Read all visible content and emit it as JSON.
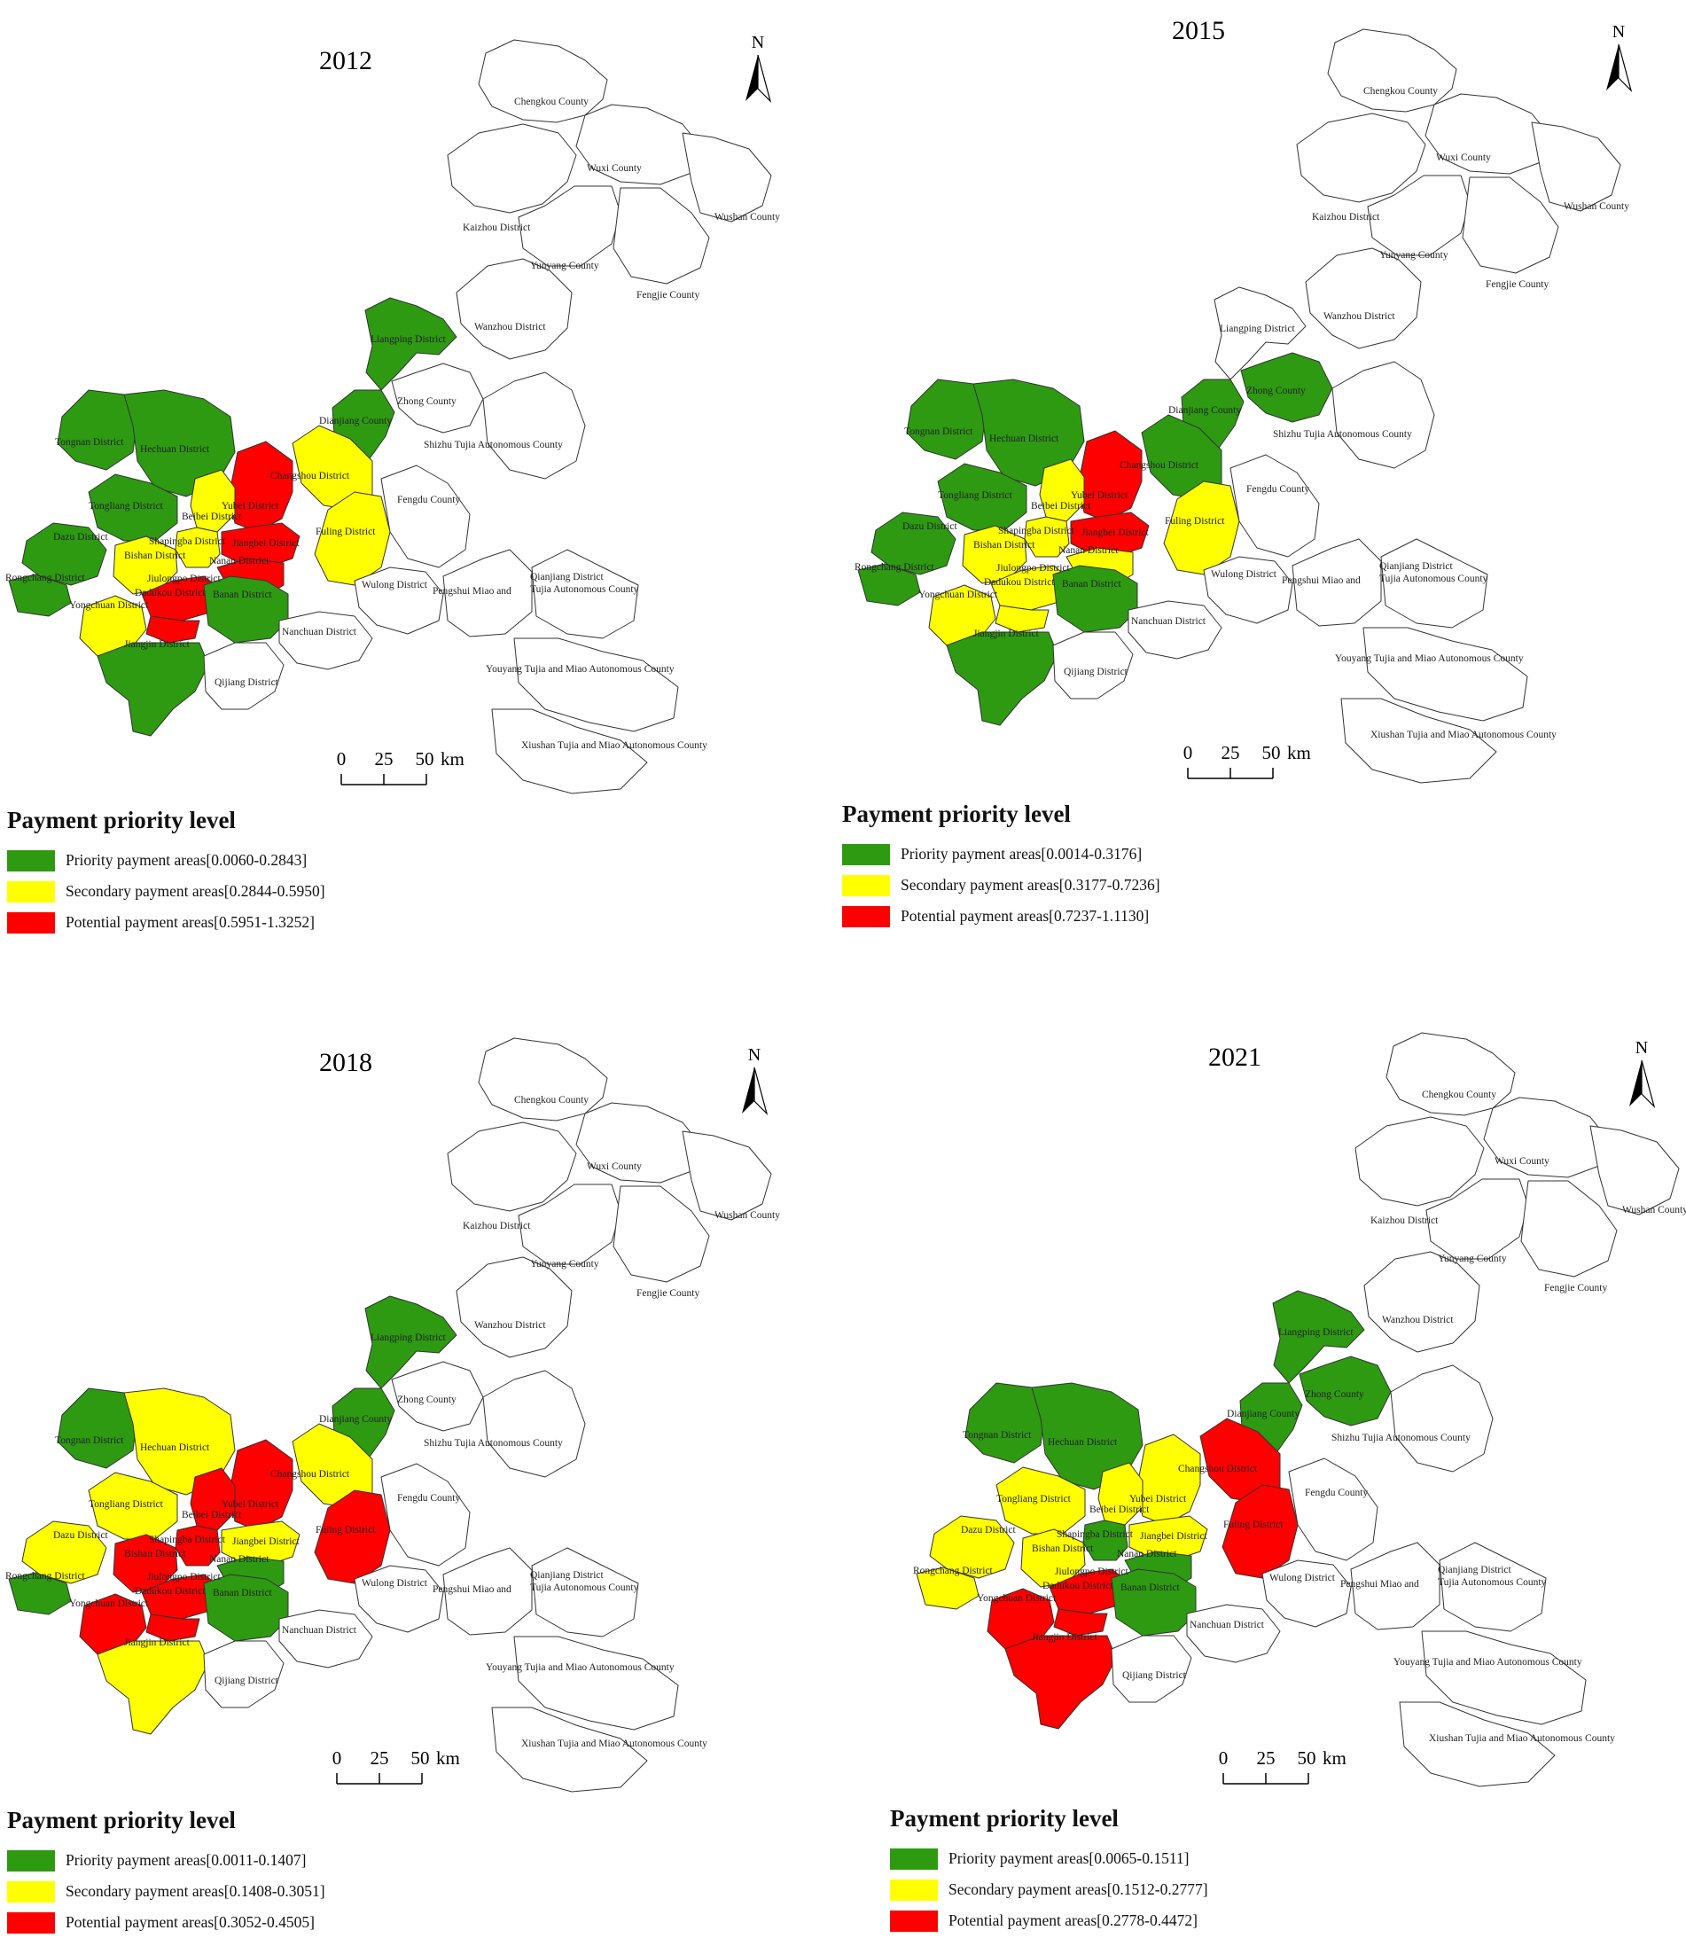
{
  "legend_title": "Payment priority level",
  "colors": {
    "priority": "#2e9a12",
    "secondary": "#ffff00",
    "potential": "#ff0000",
    "other": "#ffffff",
    "outline": "#333333"
  },
  "north_label": "N",
  "scale": {
    "ticks": [
      "0",
      "25",
      "50"
    ],
    "unit": "km"
  },
  "panels": [
    {
      "year": "2012",
      "legend": [
        {
          "level": "priority",
          "label": "Priority payment areas[0.0060-0.2843]"
        },
        {
          "level": "secondary",
          "label": "Secondary payment areas[0.2844-0.5950]"
        },
        {
          "level": "potential",
          "label": "Potential payment areas[0.5951-1.3252]"
        }
      ],
      "classes": {
        "Chengkou County": "other",
        "Wuxi County": "other",
        "Kaizhou District": "other",
        "Wushan County": "other",
        "Yunyang County": "other",
        "Fengjie County": "other",
        "Wanzhou District": "other",
        "Liangping District": "priority",
        "Zhong County": "other",
        "Dianjiang County": "priority",
        "Shizhu Tujia Autonomous County": "other",
        "Tongnan District": "priority",
        "Hechuan District": "priority",
        "Changshou District": "secondary",
        "Yubei District": "potential",
        "Tongliang District": "priority",
        "Fengdu County": "other",
        "Beibei District": "secondary",
        "Shapingba District": "secondary",
        "Jiangbei District": "potential",
        "Fuling District": "secondary",
        "Dazu District": "priority",
        "Bishan District": "secondary",
        "Yuzhong District": "potential",
        "Nanan District": "potential",
        "Rongchang District": "priority",
        "Jiulongpo District": "potential",
        "Dadukou District": "potential",
        "Wulong District": "other",
        "Pengshui Miao and Tujia Autonomous County": "other",
        "Qianjiang District": "other",
        "Yongchuan District": "secondary",
        "Banan District": "priority",
        "Nanchuan District": "other",
        "Jiangjin District": "priority",
        "Qijiang District": "other",
        "Youyang Tujia and Miao Autonomous County": "other",
        "Xiushan Tujia and Miao Autonomous County": "other"
      },
      "texts": {
        "Chengkou County": "Chengkou County",
        "Wuxi County": "Wuxi County",
        "Kaizhou District": "Kaizhou District",
        "Wushan County": "Wushan County",
        "Yunyang County": "Yunyang County",
        "Fengjie County": "Fengjie County",
        "Wanzhou District": "Wanzhou District",
        "Liangping District": "Liangping District",
        "Zhong County": "Zhong County",
        "Dianjiang County": "Dianjiang County",
        "Shizhu Tujia Autonomous County": "Shizhu Tujia Autonomous County",
        "Tongnan District": "Tongnan District",
        "Hechuan District": "Hechuan District",
        "Changshou District": "Changshou District",
        "Yubei District": "Yubei District",
        "Tongliang District": "Tongliang District",
        "Fengdu County": "Fengdu County",
        "Beibei District": "Beibei District",
        "Shapingba District": "Shapingba District",
        "Jiangbei District": "Jiangbei District",
        "Fuling District": "Fuling District",
        "Dazu District": "Dazu District",
        "Bishan District": "Bishan District",
        "Nanan District": "Nanan District",
        "Rongchang District": "Rongchang District",
        "Jiulongpo District": "Jiulongpo District",
        "Dadukou District": "Dadukou District",
        "Wulong District": "Wulong District",
        "Pengshui Miao and": "Pengshui Miao and",
        "Qianjiang District": "Qianjiang District",
        "Tujia Autonomous County": "Tujia Autonomous County",
        "Yongchuan District": "Yongchuan District",
        "Banan District": "Banan District",
        "Nanchuan District": "Nanchuan District",
        "Jiangjin District": "Jiangjin District",
        "Qijiang District": "Qijiang District",
        "Youyang Tujia and Miao Autonomous County": "Youyang Tujia and Miao Autonomous County",
        "Xiushan Tujia and Miao Autonomous County": "Xiushan Tujia and Miao Autonomous County"
      }
    },
    {
      "year": "2015",
      "legend": [
        {
          "level": "priority",
          "label": "Priority payment areas[0.0014-0.3176]"
        },
        {
          "level": "secondary",
          "label": "Secondary payment areas[0.3177-0.7236]"
        },
        {
          "level": "potential",
          "label": "Potential payment areas[0.7237-1.1130]"
        }
      ],
      "classes": {
        "Chengkou County": "other",
        "Wuxi County": "other",
        "Kaizhou District": "other",
        "Wushan County": "other",
        "Yunyang County": "other",
        "Fengjie County": "other",
        "Wanzhou District": "other",
        "Liangping District": "other",
        "Zhong County": "priority",
        "Dianjiang County": "priority",
        "Shizhu Tujia Autonomous County": "other",
        "Tongnan District": "priority",
        "Hechuan District": "priority",
        "Changshou District": "priority",
        "Yubei District": "potential",
        "Tongliang District": "priority",
        "Fengdu County": "other",
        "Beibei District": "secondary",
        "Shapingba District": "secondary",
        "Jiangbei District": "potential",
        "Fuling District": "secondary",
        "Dazu District": "priority",
        "Bishan District": "secondary",
        "Yuzhong District": "potential",
        "Nanan District": "secondary",
        "Rongchang District": "priority",
        "Jiulongpo District": "secondary",
        "Dadukou District": "secondary",
        "Wulong District": "other",
        "Pengshui Miao and Tujia Autonomous County": "other",
        "Qianjiang District": "other",
        "Yongchuan District": "secondary",
        "Banan District": "priority",
        "Nanchuan District": "other",
        "Jiangjin District": "priority",
        "Qijiang District": "other",
        "Youyang Tujia and Miao Autonomous County": "other",
        "Xiushan Tujia and Miao Autonomous County": "other"
      },
      "texts": {
        "Chengkou County": "Chengkou County",
        "Wuxi County": "Wuxi County",
        "Kaizhou District": "Kaizhou District",
        "Wushan County": "Wushan County",
        "Yunyang County": "Yunyang County",
        "Fengjie County": "Fengjie County",
        "Wanzhou District": "Wanzhou District",
        "Liangping District": "Liangping District",
        "Zhong County": "Zhong County",
        "Dianjiang County": "Dianjiang County",
        "Shizhu Tujia Autonomous County": "Shizhu Tujia Autonomous County",
        "Tongnan District": "Tongnan District",
        "Hechuan District": "Hechuan District",
        "Changshou District": "Changshou District",
        "Yubei District": "Yubei District",
        "Tongliang District": "Tongliang District",
        "Fengdu County": "Fengdu County",
        "Beibei District": "Beibei District",
        "Shapingba District": "Shapingba District",
        "Jiangbei District": "Jiangbei District",
        "Fuling District": "Fuling District",
        "Dazu District": "Dazu District",
        "Bishan District": "Bishan District",
        "Nanan District": "Nanan District",
        "Rongchang District": "Rongchang District",
        "Jiulongpo District": "Jiulongpo District",
        "Dadukou District": "Dadukou District",
        "Wulong District": "Wulong District",
        "Pengshui Miao and": "Pengshui Miao and",
        "Qianjiang District": "Qianjiang District",
        "Tujia Autonomous County": "Tujia Autonomous County",
        "Yongchuan District": "Yongchuan District",
        "Banan District": "Banan District",
        "Nanchuan District": "Nanchuan District",
        "Jiangjin District": "Jiangjin District",
        "Qijiang District": "Qijiang District",
        "Youyang Tujia and Miao Autonomous County": "Youyang Tujia and Miao Autonomous County",
        "Xiushan Tujia and Miao Autonomous County": "Xiushan Tujia and Miao Autonomous County"
      }
    },
    {
      "year": "2018",
      "legend": [
        {
          "level": "priority",
          "label": "Priority payment areas[0.0011-0.1407]"
        },
        {
          "level": "secondary",
          "label": "Secondary payment areas[0.1408-0.3051]"
        },
        {
          "level": "potential",
          "label": "Potential payment areas[0.3052-0.4505]"
        }
      ],
      "classes": {
        "Chengkou County": "other",
        "Wuxi County": "other",
        "Kaizhou District": "other",
        "Wushan County": "other",
        "Yunyang County": "other",
        "Fengjie County": "other",
        "Wanzhou District": "other",
        "Liangping District": "priority",
        "Zhong County": "other",
        "Dianjiang County": "priority",
        "Shizhu Tujia Autonomous County": "other",
        "Tongnan District": "priority",
        "Hechuan District": "secondary",
        "Changshou District": "secondary",
        "Yubei District": "potential",
        "Tongliang District": "secondary",
        "Fengdu County": "other",
        "Beibei District": "potential",
        "Shapingba District": "potential",
        "Jiangbei District": "secondary",
        "Fuling District": "potential",
        "Dazu District": "secondary",
        "Bishan District": "potential",
        "Yuzhong District": "secondary",
        "Nanan District": "priority",
        "Rongchang District": "priority",
        "Jiulongpo District": "potential",
        "Dadukou District": "potential",
        "Wulong District": "other",
        "Pengshui Miao and Tujia Autonomous County": "other",
        "Qianjiang District": "other",
        "Yongchuan District": "potential",
        "Banan District": "priority",
        "Nanchuan District": "other",
        "Jiangjin District": "secondary",
        "Qijiang District": "other",
        "Youyang Tujia and Miao Autonomous County": "other",
        "Xiushan Tujia and Miao Autonomous County": "other"
      },
      "texts": {
        "Chengkou County": "Chengkou County",
        "Wuxi County": "Wuxi County",
        "Kaizhou District": "Kaizhou District",
        "Wushan County": "Wushan County",
        "Yunyang County": "Yunyang County",
        "Fengjie County": "Fengjie County",
        "Wanzhou District": "Wanzhou District",
        "Liangping District": "Liangping District",
        "Zhong County": "Zhong County",
        "Dianjiang County": "Dianjiang County",
        "Shizhu Tujia Autonomous County": "Shizhu Tujia Autonomous County",
        "Tongnan District": "Tongnan District",
        "Hechuan District": "Hechuan District",
        "Changshou District": "Changshou District",
        "Yubei District": "Yubei District",
        "Tongliang District": "Tongliang District",
        "Fengdu County": "Fengdu County",
        "Beibei District": "Beibei District",
        "Shapingba District": "Shapingba District",
        "Jiangbei District": "Jiangbei District",
        "Fuling District": "Fuling District",
        "Dazu District": "Dazu District",
        "Bishan District": "Bishan District",
        "Nanan District": "Nanan District",
        "Rongchang District": "Rongchang District",
        "Jiulongpo District": "Jiulongpo District",
        "Dadukou District": "Dadukou District",
        "Wulong District": "Wulong District",
        "Pengshui Miao and": "Pengshui Miao and",
        "Qianjiang District": "Qianjiang District",
        "Tujia Autonomous County": "Tujia Autonomous County",
        "Yongchuan District": "Yongchuan District",
        "Banan District": "Banan District",
        "Nanchuan District": "Nanchuan District",
        "Jiangjin District": "Jiangjin District",
        "Qijiang District": "Qijiang District",
        "Youyang Tujia and Miao Autonomous County": "Youyang Tujia and Miao Autonomous County",
        "Xiushan Tujia and Miao Autonomous County": "Xiushan Tujia and Miao Autonomous County"
      }
    },
    {
      "year": "2021",
      "legend": [
        {
          "level": "priority",
          "label": "Priority payment areas[0.0065-0.1511]"
        },
        {
          "level": "secondary",
          "label": "Secondary payment areas[0.1512-0.2777]"
        },
        {
          "level": "potential",
          "label": "Potential payment areas[0.2778-0.4472]"
        }
      ],
      "classes": {
        "Chengkou County": "other",
        "Wuxi County": "other",
        "Kaizhou District": "other",
        "Wushan County": "other",
        "Yunyang County": "other",
        "Fengjie County": "other",
        "Wanzhou District": "other",
        "Liangping District": "priority",
        "Zhong County": "priority",
        "Dianjiang County": "priority",
        "Shizhu Tujia Autonomous County": "other",
        "Tongnan District": "priority",
        "Hechuan District": "priority",
        "Changshou District": "potential",
        "Yubei District": "secondary",
        "Tongliang District": "secondary",
        "Fengdu County": "other",
        "Beibei District": "secondary",
        "Shapingba District": "priority",
        "Jiangbei District": "secondary",
        "Fuling District": "potential",
        "Dazu District": "secondary",
        "Bishan District": "secondary",
        "Yuzhong District": "secondary",
        "Nanan District": "priority",
        "Rongchang District": "secondary",
        "Jiulongpo District": "potential",
        "Dadukou District": "potential",
        "Wulong District": "other",
        "Pengshui Miao and Tujia Autonomous County": "other",
        "Qianjiang District": "other",
        "Yongchuan District": "potential",
        "Banan District": "priority",
        "Nanchuan District": "other",
        "Jiangjin District": "potential",
        "Qijiang District": "other",
        "Youyang Tujia and Miao Autonomous County": "other",
        "Xiushan Tujia and Miao Autonomous County": "other"
      },
      "texts": {
        "Chengkou County": "Chengkou County",
        "Wuxi County": "Wuxi County",
        "Kaizhou District": "Kaizhou District",
        "Wushan County": "Wushan County",
        "Yunyang County": "Yunyang County",
        "Fengjie County": "Fengjie County",
        "Wanzhou District": "Wanzhou District",
        "Liangping District": "Liangping District",
        "Zhong County": "Zhong County",
        "Dianjiang County": "Dianjiang County",
        "Shizhu Tujia Autonomous County": "Shizhu Tujia Autonomous County",
        "Tongnan District": "Tongnan District",
        "Hechuan District": "Hechuan District",
        "Changshou District": "Changshou District",
        "Yubei District": "Yubei District",
        "Tongliang District": "Tongliang District",
        "Fengdu County": "Fengdu County",
        "Beibei District": "Beibei District",
        "Shapingba District": "Shapingba District",
        "Jiangbei District": "Jiangbei District",
        "Fuling District": "Fuling District",
        "Dazu District": "Dazu District",
        "Bishan District": "Bishan District",
        "Nanan District": "Nanan District",
        "Rongchang District": "Rongchang District",
        "Jiulongpo District": "Jiulongpo District",
        "Dadukou District": "Dadukou District",
        "Wulong District": "Wulong District",
        "Pengshui Miao and": "Pengshui Miao and",
        "Qianjiang District": "Qianjiang District",
        "Tujia Autonomous County": "Tujia Autonomous County",
        "Yongchuan District": "Yongchuan District",
        "Banan District": "Banan District",
        "Nanchuan District": "Nanchuan District",
        "Jiangjin District": "Jiangjin District",
        "Qijiang District": "Qijiang District",
        "Youyang Tujia and Miao Autonomous County": "Youyang Tujia and Miao Autonomous County",
        "Xiushan Tujia and Miao Autonomous County": "Xiushan Tujia and Miao Autonomous County"
      }
    }
  ]
}
